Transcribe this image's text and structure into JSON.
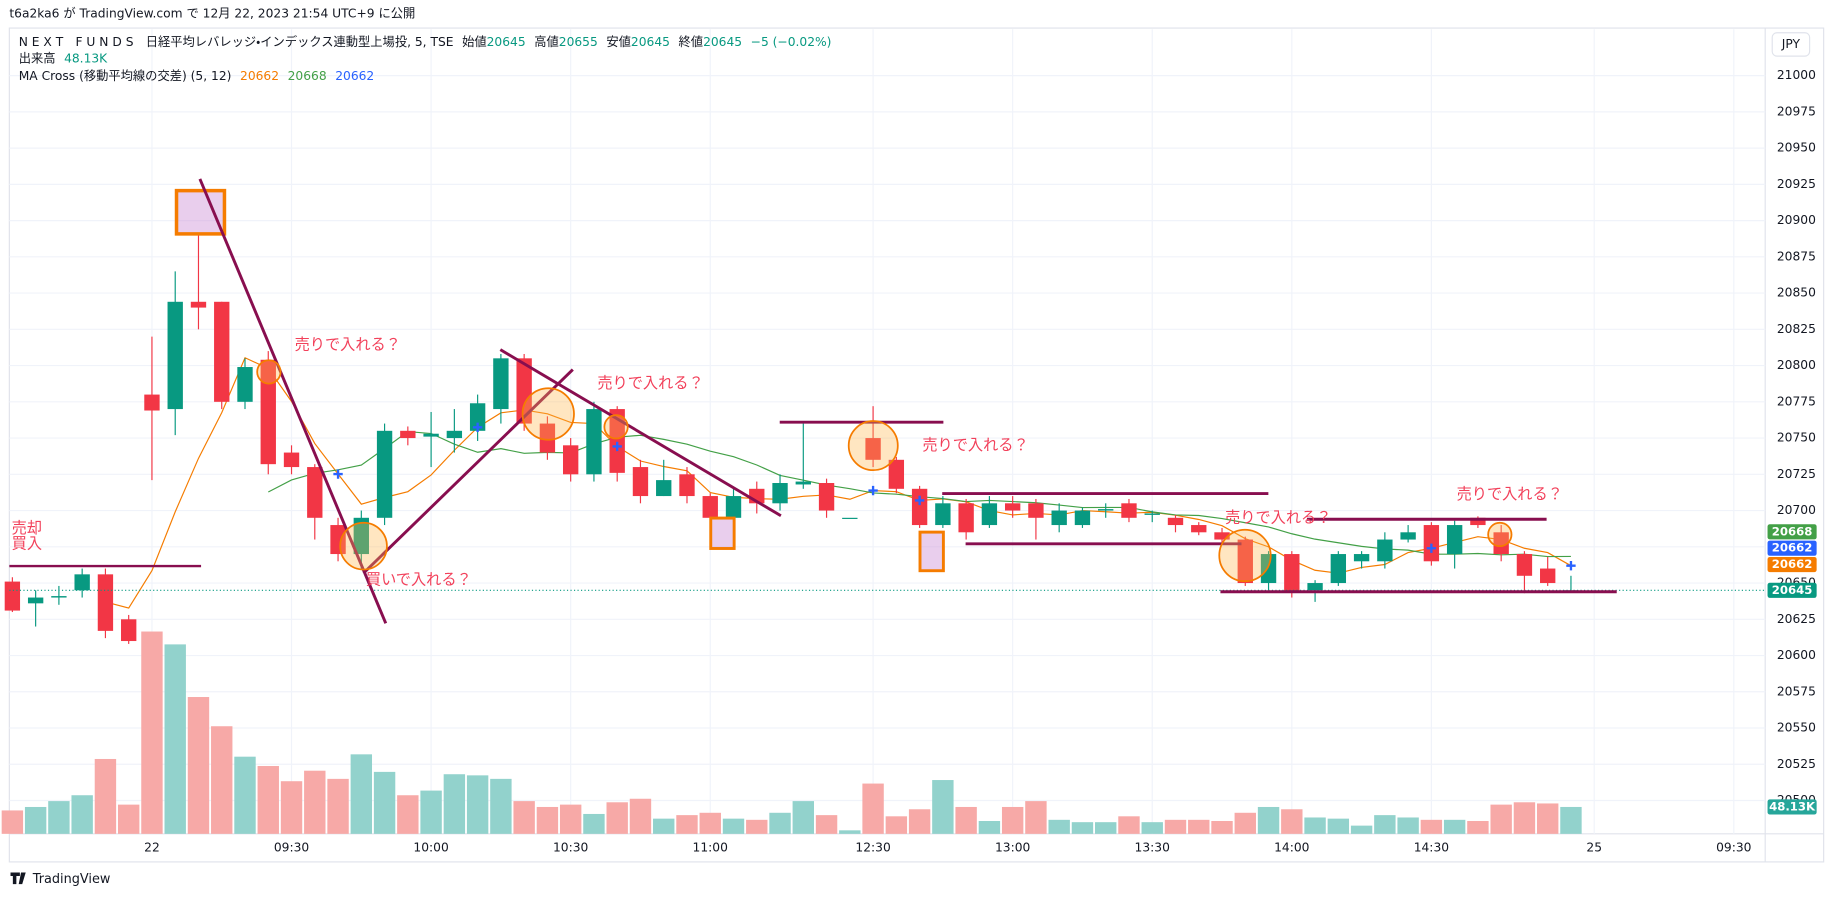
{
  "header": {
    "published": "t6a2ka6 が TradingView.com で 12月 22, 2023 21:54 UTC+9 に公開",
    "currency": "JPY",
    "footer": "TradingView"
  },
  "chart_data": {
    "type": "candlestick",
    "legend": {
      "symbol": "N E X T　F U N D S　日経平均レバレッジ・インデックス連動型上場投, 5, TSE",
      "open_label": "始値",
      "high_label": "高値",
      "low_label": "安値",
      "close_label": "終値",
      "change": "−5 (−0.02%)"
    },
    "x": [
      -6,
      -5,
      -4,
      -3,
      -2,
      -1,
      0,
      1,
      2,
      3,
      4,
      5,
      6,
      7,
      8,
      9,
      10,
      11,
      12,
      13,
      14,
      15,
      16,
      17,
      18,
      19,
      20,
      21,
      22,
      23,
      24,
      25,
      26,
      27,
      28,
      29,
      30,
      31,
      32,
      33,
      34,
      35,
      36,
      37,
      38,
      39,
      40,
      41,
      42,
      43,
      44,
      45,
      46,
      47,
      48,
      49,
      50,
      51,
      52,
      53,
      54,
      55,
      56,
      57,
      58,
      59,
      60,
      61
    ],
    "open": [
      20651,
      20636,
      20640,
      20645,
      20656,
      20625,
      20780,
      20770,
      20844,
      20844,
      20775,
      20804,
      20740,
      20730,
      20690,
      20670,
      20695,
      20755,
      20751,
      20750,
      20755,
      20770,
      20805,
      20760,
      20745,
      20725,
      20770,
      20730,
      20710,
      20725,
      20710,
      20695,
      20715,
      20705,
      20718,
      20719,
      20695,
      20750,
      20735,
      20715,
      20690,
      20705,
      20690,
      20705,
      20705,
      20690,
      20690,
      20700,
      20705,
      20697,
      20695,
      20690,
      20685,
      20680,
      20650,
      20670,
      20645,
      20650,
      20665,
      20665,
      20680,
      20690,
      20670,
      20695,
      20685,
      20670,
      20660,
      20645
    ],
    "high": [
      20654,
      20645,
      20648,
      20660,
      20660,
      20628,
      20820,
      20865,
      20891,
      20844,
      20805,
      20810,
      20745,
      20732,
      20695,
      20700,
      20760,
      20758,
      20768,
      20770,
      20780,
      20808,
      20808,
      20765,
      20750,
      20775,
      20772,
      20735,
      20735,
      20730,
      20712,
      20715,
      20720,
      20725,
      20760,
      20722,
      20695,
      20772,
      20737,
      20717,
      20710,
      20708,
      20710,
      20710,
      20708,
      20705,
      20702,
      20705,
      20708,
      20700,
      20697,
      20692,
      20688,
      20682,
      20672,
      20672,
      20652,
      20672,
      20672,
      20685,
      20690,
      20692,
      20693,
      20696,
      20690,
      20672,
      20668,
      20655
    ],
    "low": [
      20630,
      20620,
      20635,
      20640,
      20612,
      20608,
      20721,
      20752,
      20825,
      20770,
      20770,
      20725,
      20725,
      20680,
      20665,
      20660,
      20690,
      20745,
      20730,
      20740,
      20748,
      20760,
      20755,
      20735,
      20720,
      20720,
      20720,
      20705,
      20710,
      20705,
      20690,
      20692,
      20698,
      20700,
      20715,
      20695,
      20695,
      20730,
      20712,
      20688,
      20688,
      20680,
      20688,
      20695,
      20680,
      20685,
      20688,
      20695,
      20692,
      20692,
      20685,
      20683,
      20678,
      20648,
      20645,
      20640,
      20637,
      20648,
      20660,
      20660,
      20678,
      20662,
      20660,
      20688,
      20665,
      20643,
      20648,
      20645
    ],
    "close": [
      20631,
      20640,
      20641,
      20656,
      20617,
      20610,
      20769,
      20844,
      20840,
      20775,
      20799,
      20732,
      20730,
      20695,
      20670,
      20695,
      20755,
      20750,
      20753,
      20755,
      20774,
      20805,
      20760,
      20740,
      20725,
      20770,
      20726,
      20710,
      20721,
      20710,
      20695,
      20710,
      20705,
      20719,
      20720,
      20700,
      20695,
      20735,
      20715,
      20690,
      20705,
      20685,
      20705,
      20700,
      20695,
      20700,
      20700,
      20701,
      20695,
      20698,
      20690,
      20685,
      20680,
      20650,
      20670,
      20644,
      20650,
      20670,
      20670,
      20680,
      20685,
      20665,
      20690,
      20690,
      20670,
      20655,
      20650,
      20645
    ],
    "volume": {
      "name": "出来高",
      "values": [
        41900,
        48100,
        58600,
        69100,
        134000,
        52300,
        362100,
        339100,
        244900,
        192600,
        138100,
        121400,
        94200,
        113000,
        98400,
        142300,
        110900,
        69100,
        77400,
        106700,
        104700,
        98400,
        58600,
        48100,
        52300,
        35600,
        56500,
        62800,
        27200,
        33500,
        37700,
        27200,
        25100,
        37700,
        58600,
        33500,
        6300,
        90000,
        31400,
        44000,
        96300,
        48100,
        23000,
        48100,
        58600,
        25100,
        20900,
        20900,
        31400,
        20900,
        25100,
        25100,
        23000,
        37700,
        48100,
        44000,
        29300,
        27200,
        14700,
        33500,
        29300,
        25100,
        25100,
        23000,
        52300,
        56500,
        54400,
        48130
      ],
      "value_labels": [
        null,
        null,
        null,
        null,
        null,
        null,
        null,
        null,
        null,
        null,
        null,
        null,
        null,
        null,
        null,
        null,
        null,
        null,
        null,
        null,
        null,
        null,
        null,
        null,
        null,
        null,
        null,
        null,
        null,
        null,
        null,
        null,
        null,
        null,
        null,
        null,
        null,
        null,
        null,
        null,
        null,
        null,
        null,
        null,
        null,
        null,
        null,
        null,
        null,
        null,
        null,
        null,
        null,
        null,
        null,
        null,
        null,
        null,
        null,
        null,
        null,
        null,
        null,
        null,
        null,
        null,
        null,
        "48.13K"
      ]
    },
    "ma": {
      "title": "MA Cross (移動平均線の交差) (5, 12)",
      "periods": [
        5,
        12
      ],
      "colors": [
        "#f57c00",
        "#43a047"
      ],
      "cross_color": "#2962ff",
      "last": [
        20662,
        20668,
        20662
      ]
    },
    "colors": {
      "up": "#089981",
      "down": "#f23645",
      "volume_up": "#92d2cc",
      "volume_down": "#f7a9a7"
    },
    "xlim": [
      -6.13,
      69.35
    ],
    "xticks": [
      {
        "value": 0,
        "label": "22"
      },
      {
        "value": 6,
        "label": "09:30"
      },
      {
        "value": 12,
        "label": "10:00"
      },
      {
        "value": 18,
        "label": "10:30"
      },
      {
        "value": 24,
        "label": "11:00"
      },
      {
        "value": 31,
        "label": "12:30"
      },
      {
        "value": 37,
        "label": "13:00"
      },
      {
        "value": 43,
        "label": "13:30"
      },
      {
        "value": 49,
        "label": "14:00"
      },
      {
        "value": 55,
        "label": "14:30"
      },
      {
        "value": 62,
        "label": "25"
      },
      {
        "value": 68,
        "label": "09:30"
      }
    ],
    "ylim": [
      20477,
      21032
    ],
    "yticks": [
      20500,
      20525,
      20550,
      20575,
      20600,
      20625,
      20650,
      20675,
      20700,
      20725,
      20750,
      20775,
      20800,
      20825,
      20850,
      20875,
      20900,
      20925,
      20950,
      20975,
      21000
    ],
    "grid": true,
    "annotations": [
      "売却",
      "買入",
      "売りで入れる？",
      "売りで入れる？",
      "売りで入れる？",
      "売りで入れる？",
      "売りで入れる？",
      "買いで入れる？"
    ]
  }
}
